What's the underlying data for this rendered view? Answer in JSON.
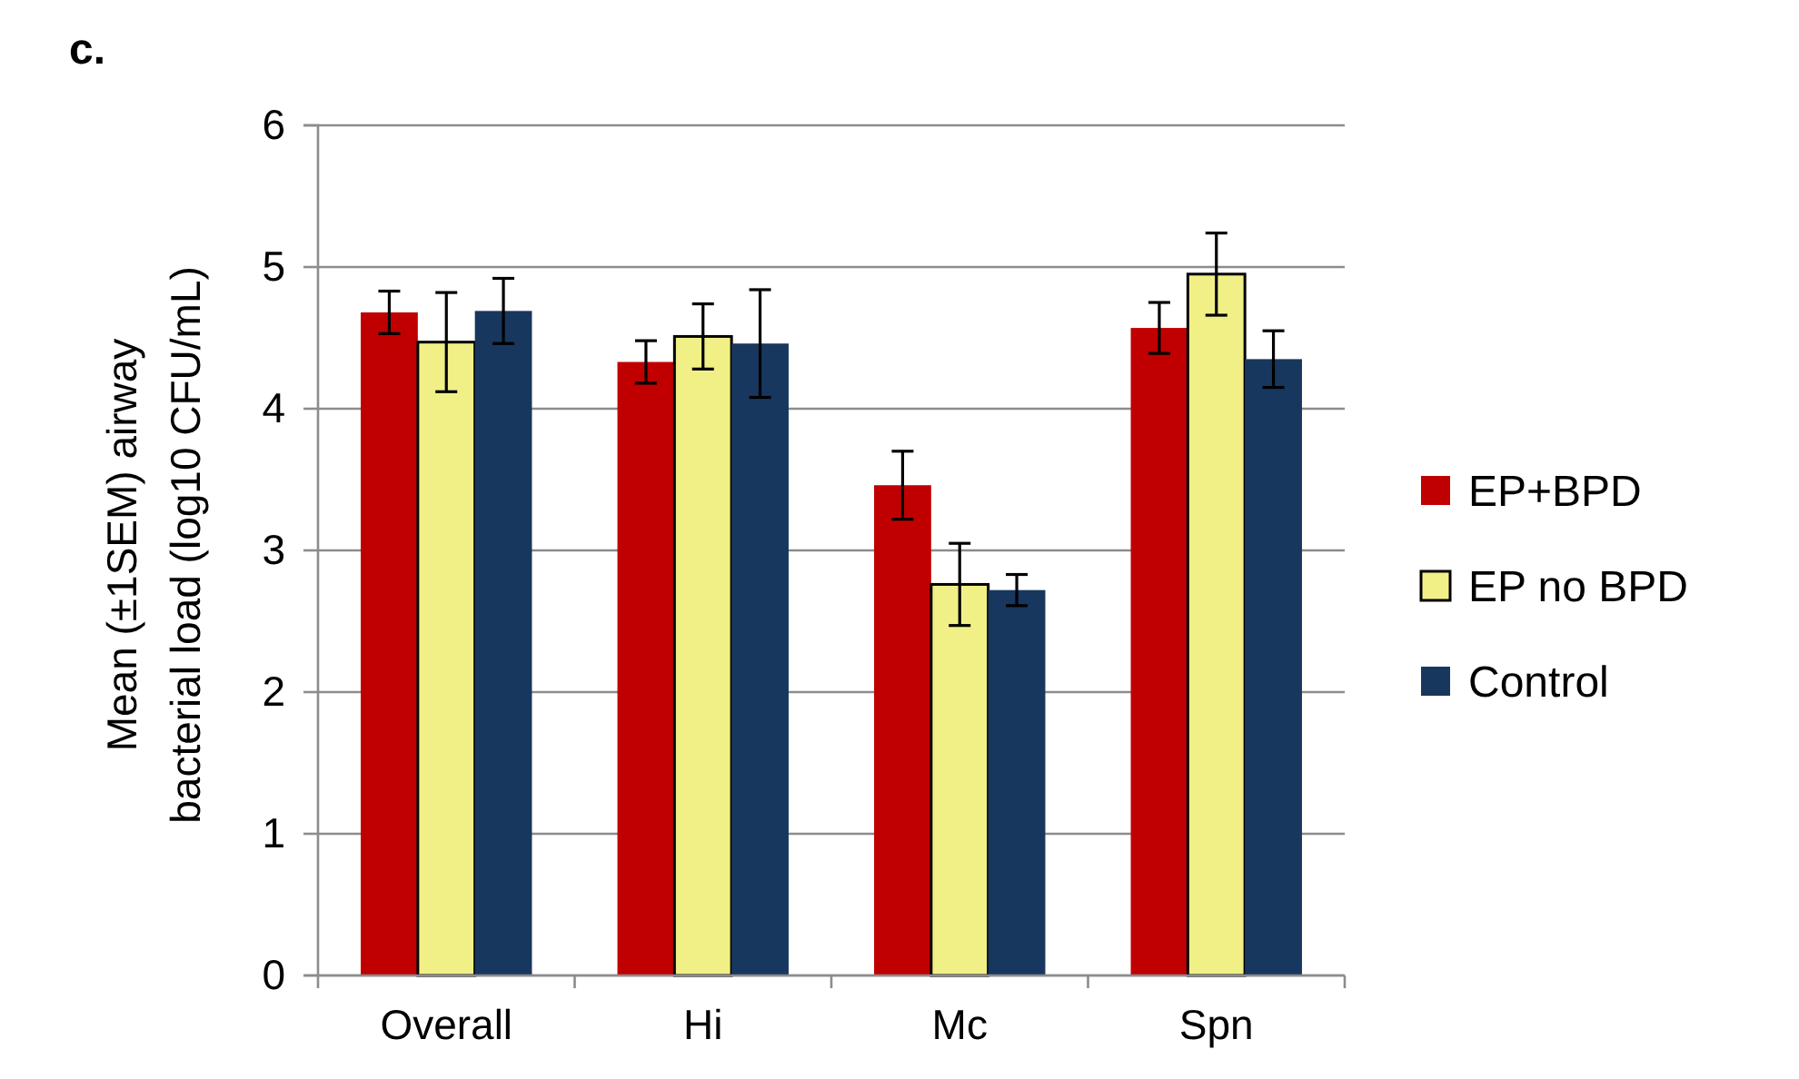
{
  "chart_data": {
    "type": "bar",
    "title": "c.",
    "ylabel": "Mean (±1SEM) airway\nbacterial load (log10 CFU/mL)",
    "categories": [
      "Overall",
      "Hi",
      "Mc",
      "Spn"
    ],
    "series": [
      {
        "name": "EP+BPD",
        "color": "#c00000",
        "values": [
          4.68,
          4.33,
          3.46,
          4.57
        ],
        "errors": [
          0.15,
          0.15,
          0.24,
          0.18
        ]
      },
      {
        "name": "EP no BPD",
        "color": "#f1f087",
        "values": [
          4.47,
          4.51,
          2.76,
          4.95
        ],
        "errors": [
          0.35,
          0.23,
          0.29,
          0.29
        ]
      },
      {
        "name": "Control",
        "color": "#18375e",
        "values": [
          4.69,
          4.46,
          2.72,
          4.35
        ],
        "errors": [
          0.23,
          0.38,
          0.11,
          0.2
        ]
      }
    ],
    "ylim": [
      0,
      6
    ],
    "yticks": [
      0,
      1,
      2,
      3,
      4,
      5,
      6
    ],
    "grid": "y",
    "legend": "right"
  }
}
